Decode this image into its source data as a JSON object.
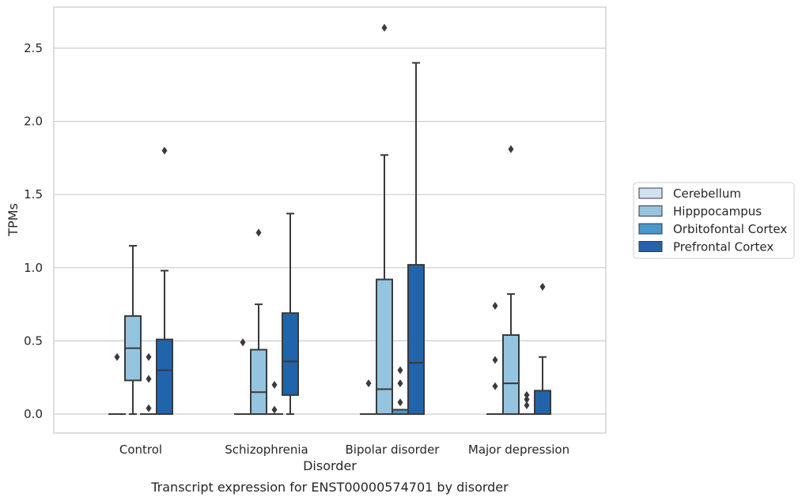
{
  "chart_data": {
    "type": "box",
    "xlabel": "Disorder",
    "ylabel": "TPMs",
    "caption": "Transcript expression for ENST00000574701 by disorder",
    "ylim": [
      -0.13,
      2.78
    ],
    "yticks": [
      "0.0",
      "0.5",
      "1.0",
      "1.5",
      "2.0",
      "2.5"
    ],
    "grid": "horizontal",
    "legend_position": "right",
    "categories": [
      "Control",
      "Schizophrenia",
      "Bipolar disorder",
      "Major depression"
    ],
    "series": [
      {
        "name": "Cerebellum",
        "color": "#d0e1f2",
        "boxes": [
          {
            "min": 0,
            "q1": 0,
            "median": 0,
            "q3": 0,
            "max": 0,
            "fliers": [
              0.39
            ]
          },
          {
            "min": 0,
            "q1": 0,
            "median": 0,
            "q3": 0,
            "max": 0,
            "fliers": [
              0.49
            ]
          },
          {
            "min": 0,
            "q1": 0,
            "median": 0,
            "q3": 0,
            "max": 0,
            "fliers": [
              0.21
            ]
          },
          {
            "min": 0,
            "q1": 0,
            "median": 0,
            "q3": 0,
            "max": 0,
            "fliers": [
              0.74,
              0.37,
              0.19
            ]
          }
        ]
      },
      {
        "name": "Hipppocampus",
        "color": "#94c4df",
        "boxes": [
          {
            "min": 0,
            "q1": 0.23,
            "median": 0.45,
            "q3": 0.67,
            "max": 1.15,
            "fliers": []
          },
          {
            "min": 0,
            "q1": 0,
            "median": 0.15,
            "q3": 0.44,
            "max": 0.75,
            "fliers": [
              1.24
            ]
          },
          {
            "min": 0,
            "q1": 0,
            "median": 0.17,
            "q3": 0.92,
            "max": 1.77,
            "fliers": [
              2.64
            ]
          },
          {
            "min": 0,
            "q1": 0,
            "median": 0.21,
            "q3": 0.54,
            "max": 0.82,
            "fliers": [
              1.81
            ]
          }
        ]
      },
      {
        "name": "Orbitofontal Cortex",
        "color": "#4a98c9",
        "boxes": [
          {
            "min": 0,
            "q1": 0,
            "median": 0,
            "q3": 0,
            "max": 0,
            "fliers": [
              0.39,
              0.24,
              0.04
            ]
          },
          {
            "min": 0,
            "q1": 0,
            "median": 0,
            "q3": 0,
            "max": 0,
            "fliers": [
              0.2,
              0.03
            ]
          },
          {
            "min": 0,
            "q1": 0,
            "median": 0,
            "q3": 0.03,
            "max": 0.03,
            "fliers": [
              0.3,
              0.21,
              0.08
            ]
          },
          {
            "min": 0,
            "q1": 0,
            "median": 0,
            "q3": 0,
            "max": 0,
            "fliers": [
              0.13,
              0.1,
              0.06
            ]
          }
        ]
      },
      {
        "name": "Prefrontal Cortex",
        "color": "#2164ab",
        "boxes": [
          {
            "min": 0,
            "q1": 0,
            "median": 0.3,
            "q3": 0.51,
            "max": 0.98,
            "fliers": [
              1.8
            ]
          },
          {
            "min": 0,
            "q1": 0.13,
            "median": 0.36,
            "q3": 0.69,
            "max": 1.37,
            "fliers": []
          },
          {
            "min": 0,
            "q1": 0,
            "median": 0.35,
            "q3": 1.02,
            "max": 2.4,
            "fliers": []
          },
          {
            "min": 0,
            "q1": 0,
            "median": 0,
            "q3": 0.16,
            "max": 0.39,
            "fliers": [
              0.87
            ]
          }
        ]
      }
    ]
  }
}
